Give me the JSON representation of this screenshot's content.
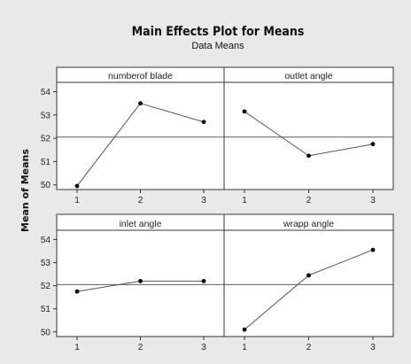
{
  "chart_data": {
    "type": "line",
    "title": "Main Effects Plot for Means",
    "subtitle": "Data Means",
    "ylabel": "Mean of Means",
    "ylim": [
      49.8,
      54.4
    ],
    "yticks": [
      50,
      51,
      52,
      53,
      54
    ],
    "xticks": [
      1,
      2,
      3
    ],
    "reference_line": 52.05,
    "grid": false,
    "colors": {
      "background": "#e9e9e9",
      "panel": "#ffffff",
      "line": "#555555",
      "point": "#000000",
      "reference": "#444444"
    },
    "panels": [
      {
        "label": "numberof blade",
        "x": [
          1,
          2,
          3
        ],
        "values": [
          49.95,
          53.5,
          52.7
        ]
      },
      {
        "label": "outlet angle",
        "x": [
          1,
          2,
          3
        ],
        "values": [
          53.15,
          51.25,
          51.75
        ]
      },
      {
        "label": "inlet angle",
        "x": [
          1,
          2,
          3
        ],
        "values": [
          51.75,
          52.2,
          52.2
        ]
      },
      {
        "label": "wrapp angle",
        "x": [
          1,
          2,
          3
        ],
        "values": [
          50.1,
          52.45,
          53.55
        ]
      }
    ]
  }
}
